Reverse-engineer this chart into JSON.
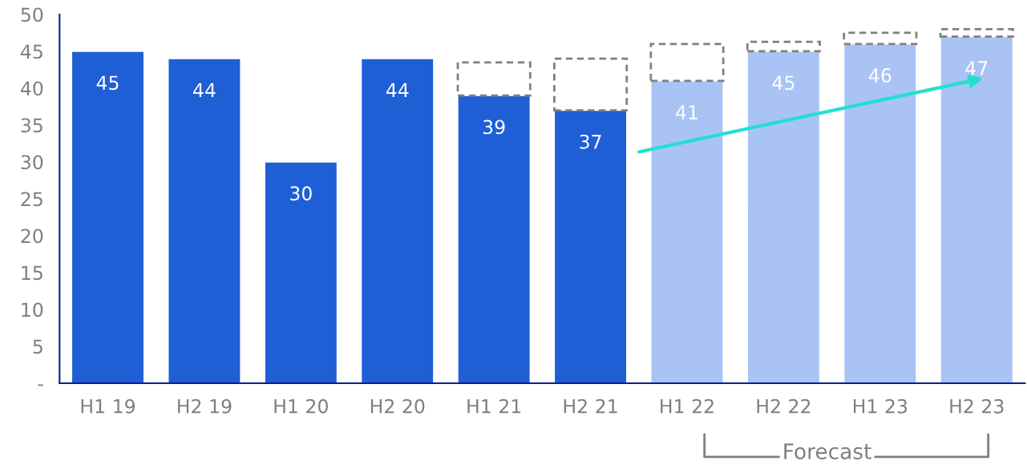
{
  "chart_data": {
    "type": "bar",
    "stacked": true,
    "categories": [
      "H1 19",
      "H2 19",
      "H1 20",
      "H2 20",
      "H1 21",
      "H2 21",
      "H1 22",
      "H2 22",
      "H1 23",
      "H2 23"
    ],
    "series": [
      {
        "colors": [
          "#1f5fd6",
          "#1f5fd6",
          "#1f5fd6",
          "#1f5fd6",
          "#1f5fd6",
          "#1f5fd6",
          "#a9c3f5",
          "#a9c3f5",
          "#a9c3f5",
          "#a9c3f5"
        ],
        "values": [
          45,
          44,
          30,
          44,
          39,
          37,
          41,
          45,
          46,
          47
        ],
        "value_labels": [
          "45",
          "44",
          "30",
          "44",
          "39",
          "37",
          "41",
          "45",
          "46",
          "47"
        ]
      },
      {
        "color": "#808080",
        "line_style": "dashed",
        "values": [
          null,
          null,
          null,
          null,
          4.5,
          7,
          5,
          1.3,
          1.5,
          1
        ]
      }
    ],
    "ylim": [
      0,
      50
    ],
    "yticks": [
      {
        "value": 0,
        "label": "-"
      },
      5,
      10,
      15,
      20,
      25,
      30,
      35,
      40,
      45,
      50
    ],
    "grid": false,
    "legend": false,
    "annotations": [
      "Forecast"
    ]
  }
}
